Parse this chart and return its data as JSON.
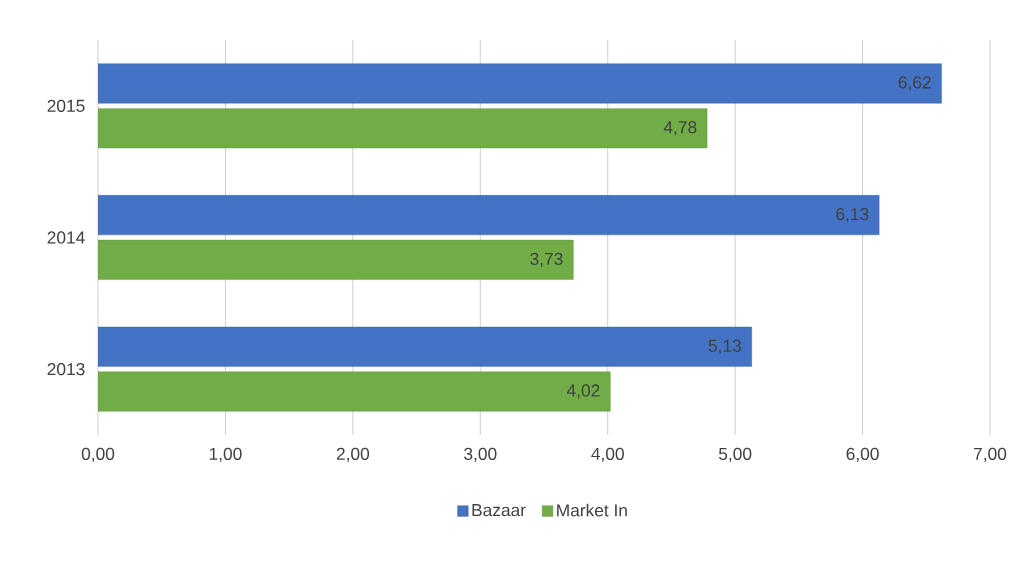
{
  "chart_data": {
    "type": "bar",
    "orientation": "horizontal",
    "categories": [
      "2015",
      "2014",
      "2013"
    ],
    "series": [
      {
        "name": "Bazaar",
        "color": "#4472c4",
        "values": [
          6.62,
          6.13,
          5.13
        ],
        "value_labels": [
          "6,62",
          "6,13",
          "5,13"
        ]
      },
      {
        "name": "Market In",
        "color": "#70ad47",
        "values": [
          4.78,
          3.73,
          4.02
        ],
        "value_labels": [
          "4,78",
          "3,73",
          "4,02"
        ]
      }
    ],
    "xlim": [
      0,
      7
    ],
    "xticks": [
      {
        "value": 0,
        "label": "0,00"
      },
      {
        "value": 1,
        "label": "1,00"
      },
      {
        "value": 2,
        "label": "2,00"
      },
      {
        "value": 3,
        "label": "3,00"
      },
      {
        "value": 4,
        "label": "4,00"
      },
      {
        "value": 5,
        "label": "5,00"
      },
      {
        "value": 6,
        "label": "6,00"
      },
      {
        "value": 7,
        "label": "7,00"
      }
    ],
    "grid": "x",
    "legend": "bottom"
  }
}
